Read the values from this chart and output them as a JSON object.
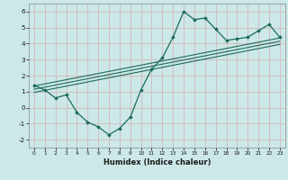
{
  "title": "",
  "xlabel": "Humidex (Indice chaleur)",
  "bg_color": "#cce8e8",
  "line_color": "#1a6b5a",
  "grid_color": "#b0d0d0",
  "xlim": [
    -0.5,
    23.5
  ],
  "ylim": [
    -2.5,
    6.5
  ],
  "xticks": [
    0,
    1,
    2,
    3,
    4,
    5,
    6,
    7,
    8,
    9,
    10,
    11,
    12,
    13,
    14,
    15,
    16,
    17,
    18,
    19,
    20,
    21,
    22,
    23
  ],
  "yticks": [
    -2,
    -1,
    0,
    1,
    2,
    3,
    4,
    5,
    6
  ],
  "main_x": [
    0,
    1,
    2,
    3,
    4,
    5,
    6,
    7,
    8,
    9,
    10,
    11,
    12,
    13,
    14,
    15,
    16,
    17,
    18,
    19,
    20,
    21,
    22,
    23
  ],
  "main_y": [
    1.4,
    1.1,
    0.6,
    0.8,
    -0.3,
    -0.9,
    -1.2,
    -1.7,
    -1.3,
    -0.6,
    1.1,
    2.4,
    3.1,
    4.4,
    6.0,
    5.5,
    5.6,
    4.9,
    4.2,
    4.3,
    4.4,
    4.8,
    5.2,
    4.4
  ],
  "trend1_x": [
    0,
    23
  ],
  "trend1_y": [
    1.35,
    4.35
  ],
  "trend2_x": [
    0,
    23
  ],
  "trend2_y": [
    1.15,
    4.15
  ],
  "trend3_x": [
    0,
    23
  ],
  "trend3_y": [
    0.95,
    3.95
  ]
}
